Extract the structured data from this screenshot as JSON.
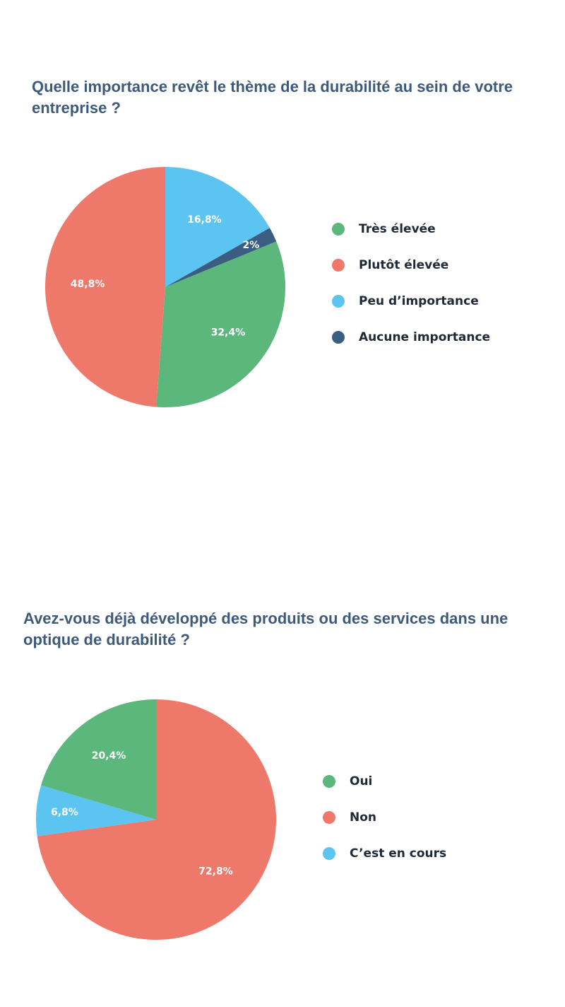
{
  "colors": {
    "green": "#5bb77b",
    "red": "#ee796b",
    "blue": "#5bc4f1",
    "navy": "#3b5d82"
  },
  "chart_data": [
    {
      "type": "pie",
      "title": "Quelle importance revêt le thème de la durabilité au sein de votre entreprise ?",
      "categories": [
        "Très élevée",
        "Plutôt élevée",
        "Peu d’importance",
        "Aucune importance"
      ],
      "values": [
        32.4,
        48.8,
        16.8,
        2
      ],
      "labels": [
        "32,4%",
        "48,8%",
        "16,8%",
        "2%"
      ],
      "colors": [
        "#5bb77b",
        "#ee796b",
        "#5bc4f1",
        "#3b5d82"
      ],
      "legend": "right"
    },
    {
      "type": "pie",
      "title": "Avez-vous déjà développé des produits ou des services dans une optique de durabilité ?",
      "categories": [
        "Oui",
        "Non",
        "C’est en cours"
      ],
      "values": [
        20.4,
        72.8,
        6.8
      ],
      "labels": [
        "20,4%",
        "72,8%",
        "6,8%"
      ],
      "colors": [
        "#5bb77b",
        "#ee796b",
        "#5bc4f1"
      ],
      "legend": "right"
    }
  ]
}
